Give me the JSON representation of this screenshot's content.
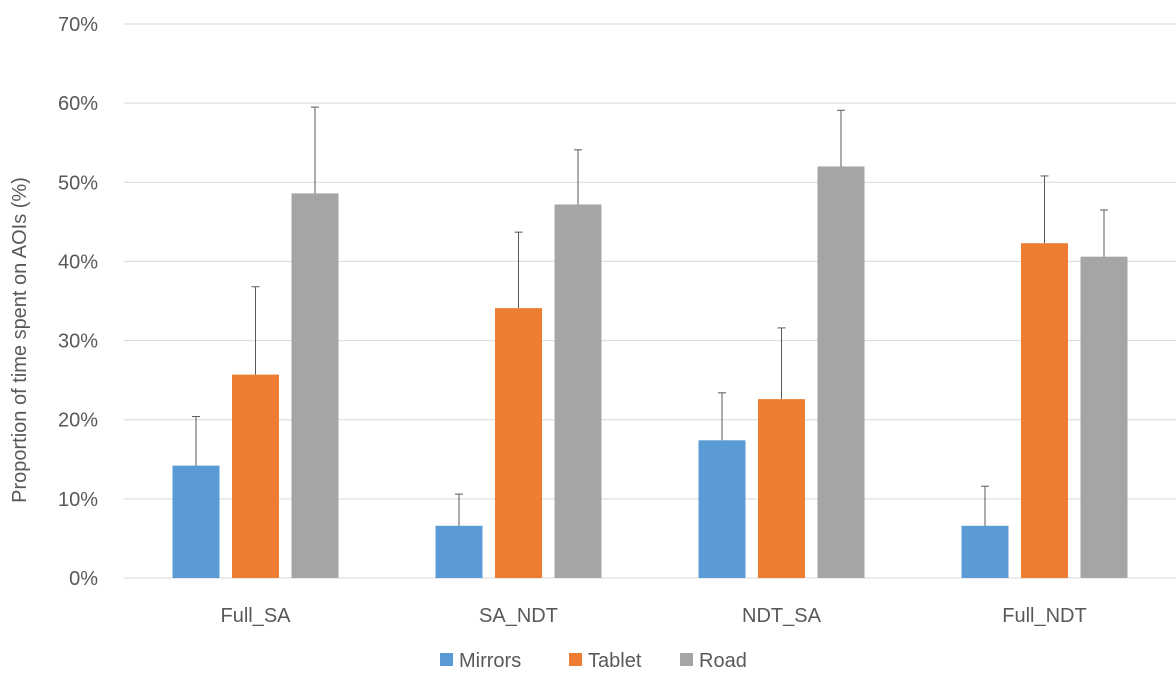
{
  "chart_data": {
    "type": "bar",
    "title": "",
    "xlabel": "",
    "ylabel": "Proportion of time spent on AOIs (%)",
    "ylim": [
      0,
      70
    ],
    "yticks": [
      0,
      10,
      20,
      30,
      40,
      50,
      60,
      70
    ],
    "ytick_labels": [
      "0%",
      "10%",
      "20%",
      "30%",
      "40%",
      "50%",
      "60%",
      "70%"
    ],
    "grid": true,
    "legend_position": "bottom",
    "categories": [
      "Full_SA",
      "SA_NDT",
      "NDT_SA",
      "Full_NDT"
    ],
    "series": [
      {
        "name": "Mirrors",
        "color": "#5b9bd5",
        "values": [
          14.2,
          6.6,
          17.4,
          6.6
        ],
        "error_upper": [
          20.4,
          10.6,
          23.4,
          11.6
        ]
      },
      {
        "name": "Tablet",
        "color": "#ed7d31",
        "values": [
          25.7,
          34.1,
          22.6,
          42.3
        ],
        "error_upper": [
          36.8,
          43.7,
          31.6,
          50.8
        ]
      },
      {
        "name": "Road",
        "color": "#a5a5a5",
        "values": [
          48.6,
          47.2,
          52.0,
          40.6
        ],
        "error_upper": [
          59.5,
          54.1,
          59.1,
          46.5
        ]
      }
    ]
  }
}
